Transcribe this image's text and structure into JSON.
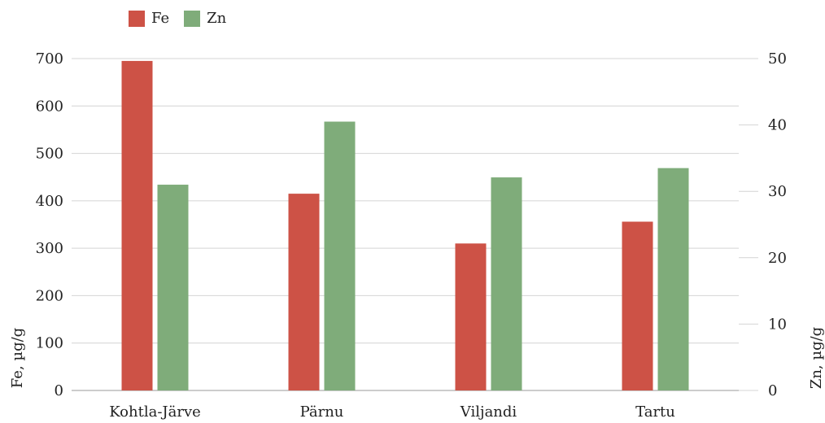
{
  "chart_data": {
    "type": "bar",
    "categories": [
      "Kohtla-Järve",
      "Pärnu",
      "Viljandi",
      "Tartu"
    ],
    "series": [
      {
        "name": "Fe",
        "axis": "left",
        "color": "#cd5246",
        "values": [
          695,
          415,
          310,
          356
        ]
      },
      {
        "name": "Zn",
        "axis": "right",
        "color": "#7fac7a",
        "values": [
          31.0,
          40.5,
          32.1,
          33.5
        ]
      }
    ],
    "ylabel_left": "Fe, µg/g",
    "ylabel_right": "Zn, µg/g",
    "ylim_left": [
      0,
      700
    ],
    "ylim_right": [
      0,
      50
    ],
    "yticks_left": [
      "0",
      "100",
      "200",
      "300",
      "400",
      "500",
      "600",
      "700"
    ],
    "yticks_right": [
      "0",
      "10",
      "20",
      "30",
      "40",
      "50"
    ],
    "grid": true,
    "legend_position": "top-left"
  }
}
